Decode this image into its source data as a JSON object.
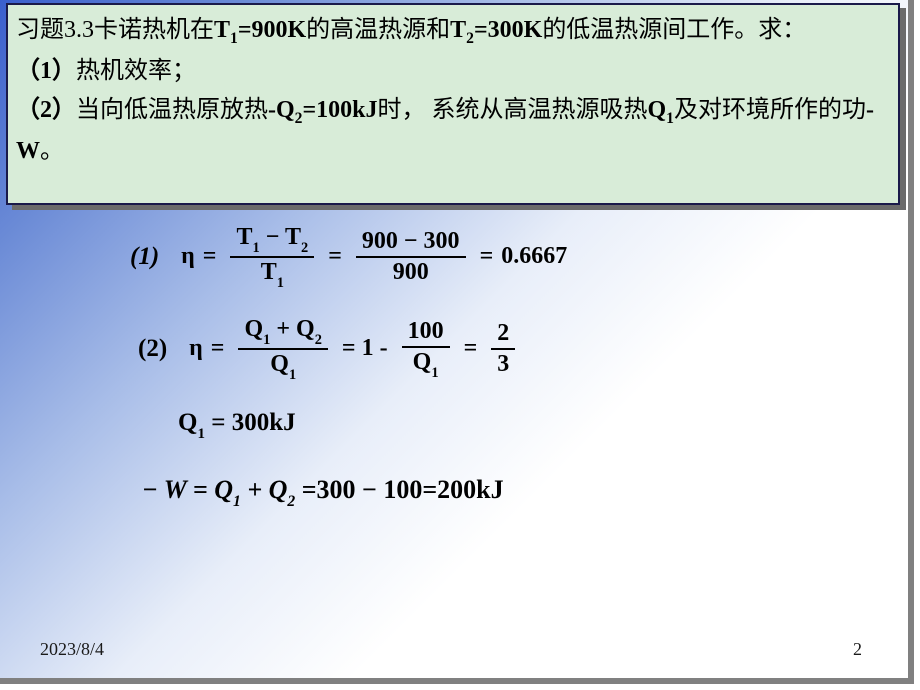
{
  "problem": {
    "line1_a": "习题3.3卡诺热机在",
    "line1_T1var": "T",
    "line1_T1sub": "1",
    "line1_T1val": "=900K",
    "line1_b": "的高温热源和",
    "line1_T2var": "T",
    "line1_T2sub": "2",
    "line1_T2val": "=300K",
    "line1_c": "的低温热源间工作。求：",
    "q1_label": "（1）",
    "q1_text": "热机效率；",
    "q2_label": "（2）",
    "q2_a": "当向低温热原放热",
    "q2_Q2var": "-Q",
    "q2_Q2sub": "2",
    "q2_Q2val": "=100kJ",
    "q2_b": "时， 系统从高温热源吸热",
    "q2_Q1var": "Q",
    "q2_Q1sub": "1",
    "q2_c": "及对环境所作的功",
    "q2_W": "-W",
    "q2_d": "。"
  },
  "eq1": {
    "label": "(1)",
    "eta": "η",
    "eq": "=",
    "num1_T1": "T",
    "num1_T1s": "1",
    "minus": "−",
    "num1_T2": "T",
    "num1_T2s": "2",
    "den1_T1": "T",
    "den1_T1s": "1",
    "num2": "900 − 300",
    "den2": "900",
    "result": "0.6667"
  },
  "eq2": {
    "label": "(2)",
    "eta": "η",
    "eq": "=",
    "num1_Q1": "Q",
    "num1_Q1s": "1",
    "plus": "+",
    "num1_Q2": "Q",
    "num1_Q2s": "2",
    "den1_Q1": "Q",
    "den1_Q1s": "1",
    "mid": "= 1 -",
    "num2": "100",
    "den2_Q1": "Q",
    "den2_Q1s": "1",
    "eq2": "=",
    "num3": "2",
    "den3": "3"
  },
  "eq3": {
    "Q1": "Q",
    "Q1s": "1",
    "val": " = 300kJ"
  },
  "eq4": {
    "text": "− W = Q",
    "s1": "1",
    "plus": " + Q",
    "s2": "2",
    "rest": " =300 − 100=200kJ"
  },
  "footer": {
    "date": "2023/8/4",
    "page": "2"
  },
  "styling": {
    "slide_size": [
      908,
      678
    ],
    "bg_gradient": [
      "#3a5fcd",
      "#6a8ad6",
      "#a8bde8",
      "#e8eef9",
      "#ffffff"
    ],
    "problem_box_bg": "#d8ecd8",
    "problem_box_border": "#1a1a4a",
    "problem_box_shadow": "#6b6b6b",
    "problem_font_size": 24,
    "equation_font_size": 24,
    "equation_font": "Times New Roman",
    "equation_weight": "bold",
    "footer_font_size": 18,
    "text_color": "#000000"
  }
}
